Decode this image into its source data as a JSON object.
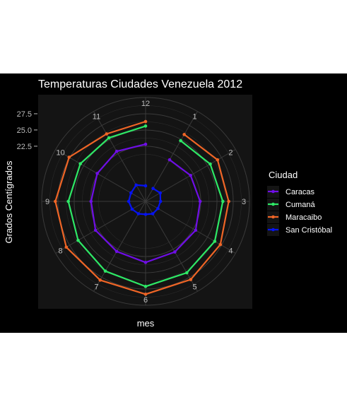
{
  "chart_data": {
    "type": "line",
    "coord": "polar",
    "title": "Temperaturas Ciudades Venezuela 2012",
    "xlabel": "mes",
    "ylabel": "Grados Centígrados",
    "legend": {
      "title": "Ciudad",
      "placement": "right"
    },
    "categories": [
      "1",
      "2",
      "3",
      "4",
      "5",
      "6",
      "7",
      "8",
      "9",
      "10",
      "11",
      "12"
    ],
    "y_ticks": [
      "22.5",
      "25.0",
      "27.5"
    ],
    "ylim": [
      14.0,
      30.0
    ],
    "grid": true,
    "series": [
      {
        "name": "Caracas",
        "color": "#6f0ee6",
        "values": [
          21.4,
          22.0,
          22.4,
          22.9,
          23.0,
          23.4,
          22.9,
          22.9,
          22.4,
          22.6,
          22.9,
          22.8
        ]
      },
      {
        "name": "Cumaná",
        "color": "#2ee866",
        "values": [
          24.8,
          25.5,
          25.9,
          26.3,
          26.7,
          27.1,
          26.4,
          26.0,
          25.9,
          25.6,
          25.3,
          25.6
        ]
      },
      {
        "name": "Maracaibo",
        "color": "#ef6526",
        "values": [
          25.9,
          26.8,
          26.8,
          27.3,
          27.9,
          28.3,
          28.0,
          28.1,
          27.9,
          27.6,
          26.0,
          26.3
        ]
      },
      {
        "name": "San Cristóbal",
        "color": "#0613f0",
        "values": [
          16.3,
          16.6,
          16.3,
          16.2,
          16.2,
          16.0,
          16.2,
          16.4,
          16.6,
          16.6,
          16.9,
          16.4
        ]
      }
    ]
  }
}
